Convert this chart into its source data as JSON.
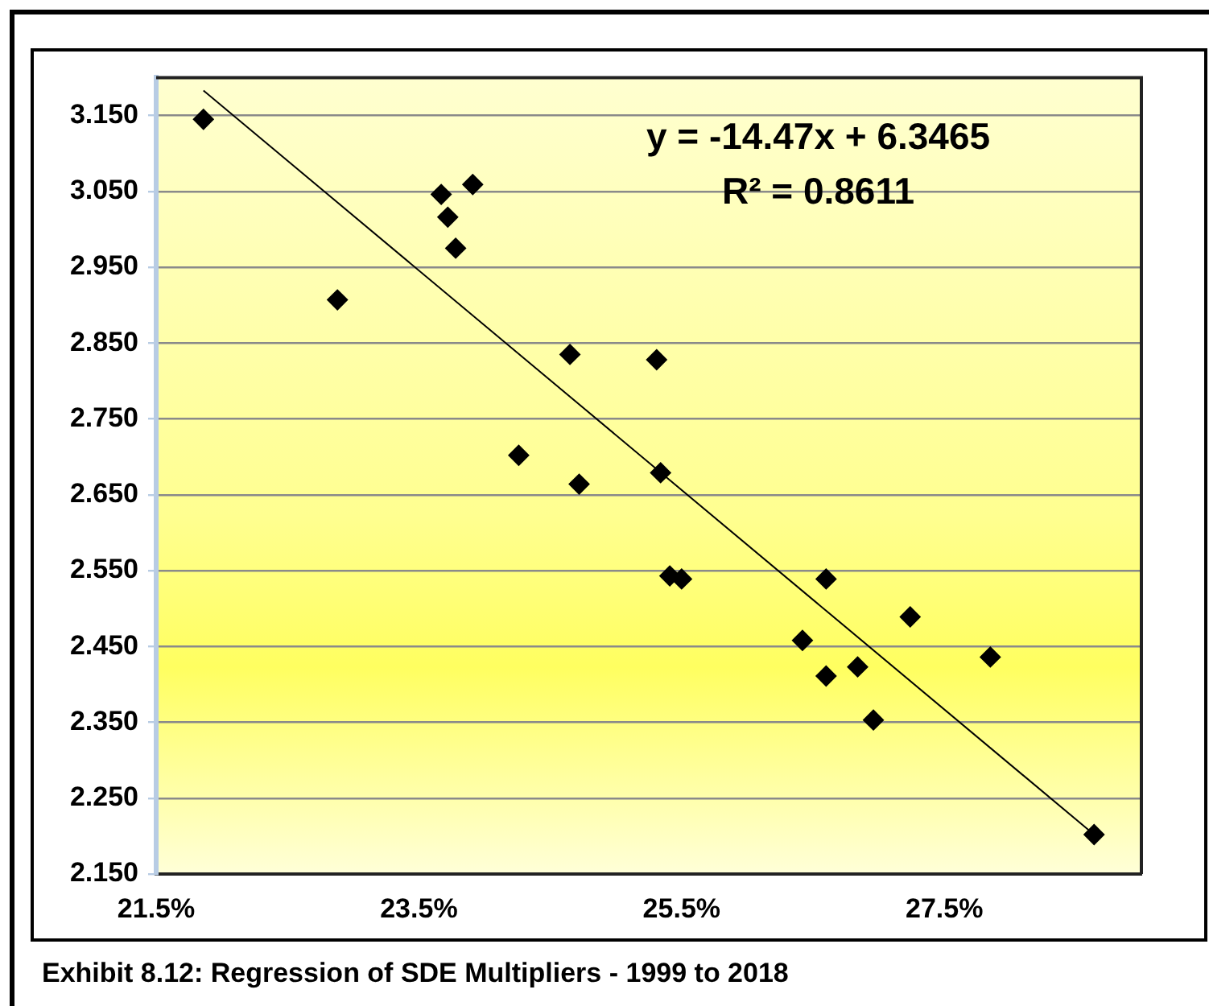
{
  "chart_data": {
    "type": "scatter",
    "marker": "diamond",
    "grid": "y",
    "xlim": [
      21.5,
      29.0
    ],
    "xticks": [
      {
        "value": 21.5,
        "label": "21.5%"
      },
      {
        "value": 23.5,
        "label": "23.5%"
      },
      {
        "value": 25.5,
        "label": "25.5%"
      },
      {
        "value": 27.5,
        "label": "27.5%"
      }
    ],
    "ylim": [
      2.15,
      3.2
    ],
    "yticks": [
      {
        "value": 2.15,
        "label": "2.150"
      },
      {
        "value": 2.25,
        "label": "2.250"
      },
      {
        "value": 2.35,
        "label": "2.350"
      },
      {
        "value": 2.45,
        "label": "2.450"
      },
      {
        "value": 2.55,
        "label": "2.550"
      },
      {
        "value": 2.65,
        "label": "2.650"
      },
      {
        "value": 2.75,
        "label": "2.750"
      },
      {
        "value": 2.85,
        "label": "2.850"
      },
      {
        "value": 2.95,
        "label": "2.950"
      },
      {
        "value": 3.05,
        "label": "3.050"
      },
      {
        "value": 3.15,
        "label": "3.150"
      }
    ],
    "annotations": [
      "y = -14.47x + 6.3465",
      "R² = 0.8611",
      "Exhibit 8.12: Regression of SDE Multipliers - 1999 to 2018"
    ],
    "series": [
      {
        "type": "scatter",
        "color": "#000000",
        "x": [
          21.86,
          22.88,
          23.67,
          23.72,
          23.78,
          23.91,
          24.65,
          25.31,
          24.26,
          24.72,
          25.34,
          25.41,
          25.5,
          26.6,
          27.24,
          26.42,
          26.6,
          26.84,
          26.96,
          27.85,
          28.64
        ],
        "values": [
          3.145,
          2.907,
          3.046,
          3.016,
          2.975,
          3.059,
          2.835,
          2.828,
          2.702,
          2.664,
          2.679,
          2.543,
          2.539,
          2.539,
          2.489,
          2.458,
          2.411,
          2.423,
          2.353,
          2.436,
          2.202
        ]
      },
      {
        "type": "line",
        "color": "#000000",
        "marker": "none",
        "x": [
          21.86,
          28.64
        ],
        "values": [
          3.183,
          2.202
        ]
      }
    ]
  }
}
